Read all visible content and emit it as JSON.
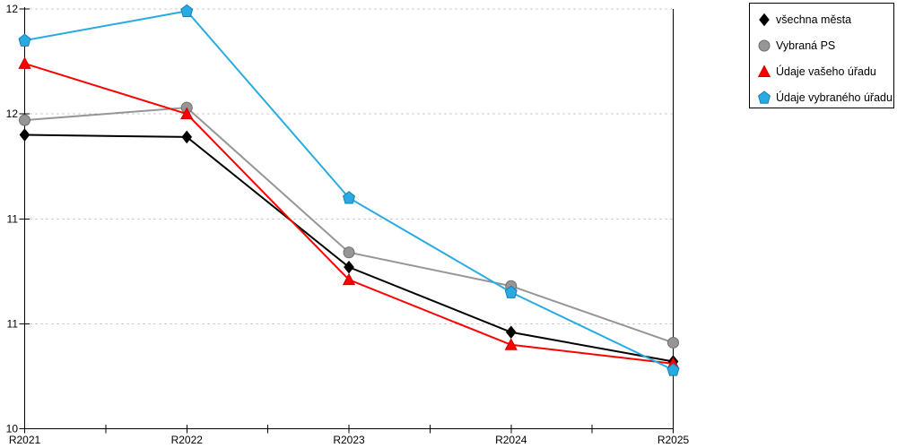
{
  "chart_data": {
    "type": "line",
    "title": "",
    "xlabel": "",
    "ylabel": "",
    "categories": [
      "R2021",
      "R2022",
      "R2023",
      "R2024",
      "R2025"
    ],
    "series": [
      {
        "name": "všechna města",
        "marker": "diamond",
        "color": "#000000",
        "stroke": "#000000",
        "values": [
          11.65,
          11.64,
          11.02,
          10.71,
          10.57
        ]
      },
      {
        "name": "Vybraná PS",
        "marker": "circle",
        "color": "#969696",
        "stroke": "#6e6e6e",
        "values": [
          11.72,
          11.78,
          11.09,
          10.93,
          10.66
        ]
      },
      {
        "name": "Údaje vašeho úřadu",
        "marker": "triangle",
        "color": "#ff0000",
        "stroke": "#cc0000",
        "values": [
          11.99,
          11.75,
          10.96,
          10.65,
          10.56
        ]
      },
      {
        "name": "Údaje vybraného úřadu",
        "marker": "pentagon",
        "color": "#29abe2",
        "stroke": "#1580b5",
        "values": [
          12.1,
          12.24,
          11.35,
          10.9,
          10.53
        ]
      }
    ],
    "y_axis": {
      "min": 10.25,
      "max": 12.25,
      "ticks": [
        {
          "value": 12.25,
          "label": "12"
        },
        {
          "value": 11.75,
          "label": "12"
        },
        {
          "value": 11.25,
          "label": "11"
        },
        {
          "value": 10.75,
          "label": "11"
        },
        {
          "value": 10.25,
          "label": "10"
        }
      ]
    },
    "x_axis": {
      "minor_ticks_at_midpoints": true
    },
    "grid": {
      "horizontal_style": "dotted",
      "color": "#b8b8b8"
    },
    "legend": {
      "position": "top-right-outside",
      "border_color": "#000000",
      "background": "#ffffff"
    },
    "axis_color": "#000000",
    "background": "#ffffff"
  }
}
